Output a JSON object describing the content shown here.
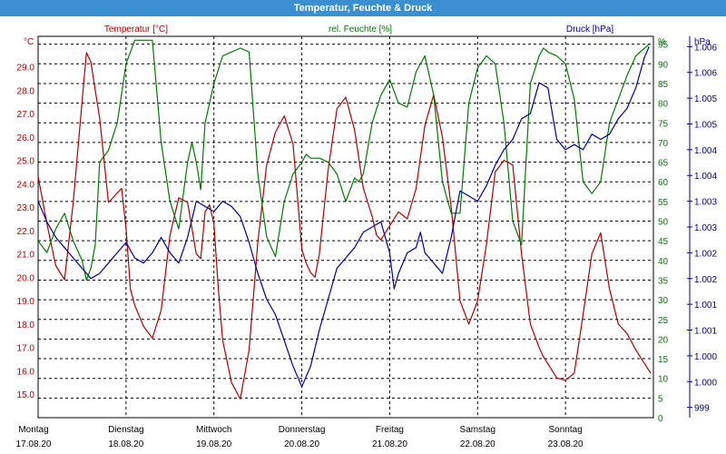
{
  "window": {
    "title": "Temperatur, Feuchte & Druck"
  },
  "colors": {
    "temperature": "#b00000",
    "humidity": "#007a00",
    "pressure": "#00009c",
    "titlebar": "#3a8fd0"
  },
  "chart_data": {
    "type": "line",
    "title": "Temperatur, Feuchte & Druck",
    "grid": true,
    "x_days": [
      {
        "day": "Montag",
        "date": "17.08.20"
      },
      {
        "day": "Dienstag",
        "date": "18.08.20"
      },
      {
        "day": "Mittwoch",
        "date": "19.08.20"
      },
      {
        "day": "Donnerstag",
        "date": "20.08.20"
      },
      {
        "day": "Freitag",
        "date": "21.08.20"
      },
      {
        "day": "Samstag",
        "date": "22.08.20"
      },
      {
        "day": "Sonntag",
        "date": "23.08.20"
      }
    ],
    "xlim": [
      0,
      7
    ],
    "axes": {
      "left": {
        "label": "Temperatur [°C]",
        "unit": "°C",
        "ylim": [
          14,
          30.3
        ],
        "ticks": [
          15,
          16,
          17,
          18,
          19,
          20,
          21,
          22,
          23,
          24,
          25,
          26,
          27,
          28,
          29
        ],
        "tick_labels": [
          "15.0",
          "16.0",
          "17.0",
          "18.0",
          "19.0",
          "20.0",
          "21.0",
          "22.0",
          "23.0",
          "24.0",
          "25.0",
          "26.0",
          "27.0",
          "28.0",
          "29.0"
        ]
      },
      "middle": {
        "label": "rel. Feuchte [%]",
        "unit": "%",
        "ylim": [
          0,
          97
        ],
        "ticks": [
          0,
          5,
          10,
          15,
          20,
          25,
          30,
          35,
          40,
          45,
          50,
          55,
          60,
          65,
          70,
          75,
          80,
          85,
          90,
          95
        ],
        "tick_labels": [
          "0",
          "5",
          "10",
          "15",
          "20",
          "25",
          "30",
          "35",
          "40",
          "45",
          "50",
          "55",
          "60",
          "65",
          "70",
          "75",
          "80",
          "85",
          "90",
          "95"
        ]
      },
      "right": {
        "label": "Druck [hPa]",
        "unit": "hPa",
        "ylim": [
          998.8,
          1006.2
        ],
        "ticks": [
          999,
          999.5,
          1000,
          1000.5,
          1001,
          1001.5,
          1002,
          1002.5,
          1003,
          1003.5,
          1004,
          1004.5,
          1005,
          1005.5,
          1006
        ],
        "tick_labels": [
          "999",
          "1.000",
          "1.000",
          "1.001",
          "1.001",
          "1.002",
          "1.002",
          "1.003",
          "1.003",
          "1.004",
          "1.004",
          "1.005",
          "1.005",
          "1.006",
          "1.006"
        ]
      }
    },
    "series": [
      {
        "name": "Temperatur [°C]",
        "axis": "left",
        "x": [
          0,
          0.1,
          0.2,
          0.3,
          0.4,
          0.5,
          0.55,
          0.6,
          0.7,
          0.8,
          0.9,
          0.95,
          1.0,
          1.05,
          1.1,
          1.2,
          1.3,
          1.4,
          1.5,
          1.6,
          1.7,
          1.8,
          1.85,
          1.9,
          1.95,
          2.0,
          2.05,
          2.1,
          2.2,
          2.3,
          2.4,
          2.5,
          2.6,
          2.7,
          2.8,
          2.9,
          3.0,
          3.05,
          3.1,
          3.15,
          3.2,
          3.3,
          3.4,
          3.5,
          3.6,
          3.7,
          3.8,
          3.85,
          3.9,
          4.0,
          4.1,
          4.2,
          4.3,
          4.4,
          4.5,
          4.6,
          4.7,
          4.8,
          4.9,
          5.0,
          5.1,
          5.2,
          5.3,
          5.4,
          5.5,
          5.6,
          5.7,
          5.75,
          5.8,
          5.9,
          6.0,
          6.1,
          6.2,
          6.3,
          6.4,
          6.5,
          6.6,
          6.7,
          6.8,
          6.9,
          6.97
        ],
        "y": [
          24.3,
          22.3,
          20.5,
          19.9,
          23.2,
          27.5,
          29.6,
          29.2,
          26.8,
          23.2,
          23.6,
          23.8,
          22.1,
          19.5,
          18.8,
          17.9,
          17.4,
          18.6,
          21.8,
          23.4,
          23.2,
          21.0,
          20.8,
          22.8,
          23.1,
          22.3,
          19.5,
          17.3,
          15.5,
          14.8,
          16.9,
          21.5,
          24.8,
          26.2,
          26.9,
          25.7,
          21.2,
          20.6,
          20.2,
          20.0,
          21.0,
          24.6,
          27.2,
          27.7,
          26.3,
          23.8,
          22.6,
          21.8,
          21.6,
          22.2,
          22.8,
          22.5,
          23.8,
          26.5,
          27.8,
          26.0,
          23.0,
          19.0,
          18.0,
          19.0,
          21.4,
          24.5,
          25.0,
          24.8,
          21.0,
          18.0,
          17.0,
          16.6,
          16.3,
          15.7,
          15.6,
          15.9,
          18.4,
          21.0,
          21.9,
          19.5,
          18.0,
          17.6,
          16.9,
          16.3,
          15.9
        ]
      },
      {
        "name": "rel. Feuchte [%]",
        "axis": "middle",
        "x": [
          0,
          0.1,
          0.2,
          0.3,
          0.4,
          0.5,
          0.55,
          0.6,
          0.65,
          0.7,
          0.8,
          0.9,
          1.0,
          1.1,
          1.2,
          1.3,
          1.4,
          1.5,
          1.6,
          1.7,
          1.75,
          1.8,
          1.85,
          1.9,
          2.0,
          2.1,
          2.2,
          2.3,
          2.4,
          2.5,
          2.6,
          2.7,
          2.8,
          2.9,
          3.0,
          3.05,
          3.1,
          3.2,
          3.3,
          3.4,
          3.5,
          3.6,
          3.65,
          3.7,
          3.8,
          3.9,
          4.0,
          4.1,
          4.2,
          4.3,
          4.4,
          4.5,
          4.6,
          4.7,
          4.8,
          4.9,
          5.0,
          5.1,
          5.2,
          5.3,
          5.4,
          5.5,
          5.6,
          5.7,
          5.75,
          5.8,
          5.9,
          6.0,
          6.1,
          6.2,
          6.3,
          6.4,
          6.5,
          6.6,
          6.7,
          6.8,
          6.9,
          6.95
        ],
        "y": [
          45,
          42,
          48,
          52,
          45,
          40,
          35,
          38,
          44,
          65,
          68,
          75,
          90,
          96,
          96,
          96,
          70,
          55,
          48,
          65,
          70,
          65,
          58,
          75,
          85,
          92,
          93,
          94,
          93,
          62,
          46,
          41,
          55,
          62,
          65,
          67,
          66,
          66,
          65,
          62,
          55,
          61,
          60,
          62,
          75,
          82,
          86,
          80,
          79,
          88,
          92,
          82,
          60,
          52,
          52,
          80,
          89,
          92,
          90,
          75,
          50,
          44,
          85,
          92,
          94,
          93,
          92,
          90,
          81,
          60,
          57,
          60,
          75,
          81,
          87,
          92,
          94,
          95
        ]
      },
      {
        "name": "Druck [hPa]",
        "axis": "right",
        "x": [
          0,
          0.1,
          0.2,
          0.3,
          0.4,
          0.5,
          0.6,
          0.7,
          0.8,
          0.9,
          1.0,
          1.1,
          1.2,
          1.3,
          1.4,
          1.5,
          1.6,
          1.7,
          1.8,
          1.9,
          2.0,
          2.1,
          2.2,
          2.3,
          2.4,
          2.5,
          2.6,
          2.7,
          2.8,
          2.9,
          3.0,
          3.1,
          3.2,
          3.3,
          3.4,
          3.5,
          3.6,
          3.7,
          3.8,
          3.9,
          4.0,
          4.05,
          4.1,
          4.2,
          4.3,
          4.35,
          4.4,
          4.5,
          4.6,
          4.7,
          4.8,
          4.9,
          5.0,
          5.1,
          5.2,
          5.3,
          5.4,
          5.5,
          5.6,
          5.7,
          5.8,
          5.9,
          6.0,
          6.1,
          6.2,
          6.3,
          6.4,
          6.5,
          6.6,
          6.7,
          6.8,
          6.9,
          6.95
        ],
        "y": [
          1003.0,
          1002.6,
          1002.3,
          1002.1,
          1001.9,
          1001.7,
          1001.5,
          1001.6,
          1001.8,
          1002.0,
          1002.2,
          1001.9,
          1001.8,
          1002.0,
          1002.3,
          1002.0,
          1001.8,
          1002.3,
          1003.0,
          1002.9,
          1002.8,
          1003.0,
          1002.9,
          1002.7,
          1002.2,
          1001.6,
          1001.1,
          1000.8,
          1000.3,
          999.8,
          999.4,
          999.8,
          1000.5,
          1001.1,
          1001.7,
          1001.9,
          1002.1,
          1002.4,
          1002.5,
          1002.6,
          1002.0,
          1001.3,
          1001.6,
          1002.0,
          1002.1,
          1002.4,
          1002.0,
          1001.8,
          1001.6,
          1002.3,
          1003.2,
          1003.1,
          1003.0,
          1003.3,
          1003.7,
          1004.0,
          1004.2,
          1004.6,
          1004.7,
          1005.3,
          1005.2,
          1004.2,
          1004.0,
          1004.1,
          1004.0,
          1004.3,
          1004.2,
          1004.3,
          1004.6,
          1004.8,
          1005.2,
          1005.8,
          1006.0
        ]
      }
    ]
  }
}
